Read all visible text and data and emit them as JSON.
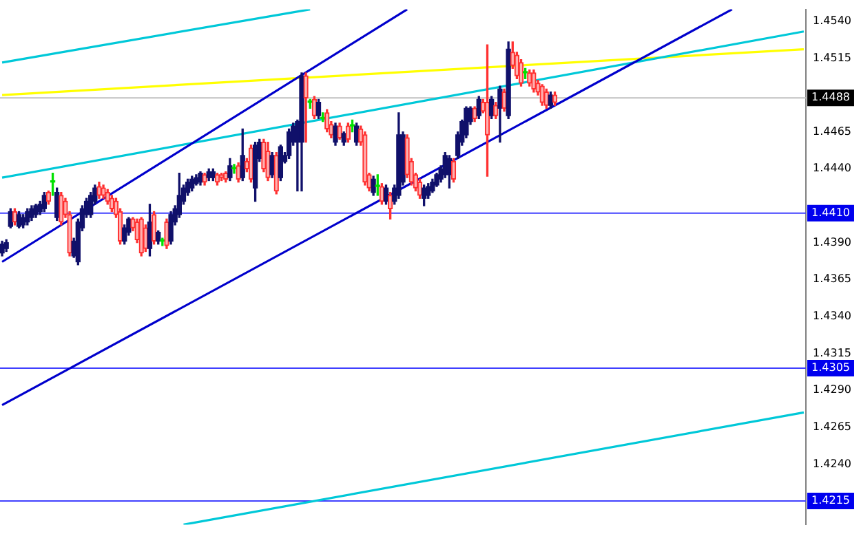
{
  "chart_data": {
    "type": "candlestick",
    "categories": [
      null,
      null,
      null,
      null,
      null,
      null,
      null,
      null,
      null,
      null,
      null,
      null,
      null,
      null,
      null,
      null,
      null,
      null,
      null,
      null,
      null,
      null,
      null,
      null,
      null,
      null,
      null,
      null,
      null,
      null,
      null,
      null,
      null,
      null,
      null,
      null,
      null,
      null,
      null,
      null,
      null,
      null,
      null,
      null,
      null,
      null,
      null,
      null,
      null,
      null,
      null,
      null,
      null,
      null,
      null,
      null,
      null,
      null,
      null,
      null,
      null,
      null,
      null,
      null,
      null,
      null,
      null,
      null,
      null,
      null,
      null,
      null,
      null,
      null,
      null,
      null,
      null,
      null,
      null,
      null,
      null,
      null,
      null,
      null,
      null,
      null,
      null,
      null,
      null,
      null,
      null,
      null,
      null,
      null,
      null,
      null,
      null,
      null,
      null,
      null,
      null,
      null,
      null,
      null,
      null,
      null,
      null,
      null,
      null,
      null,
      null,
      null,
      null,
      null,
      null,
      null,
      null,
      null,
      null,
      null,
      null,
      null,
      null,
      null,
      null,
      null,
      null,
      null,
      null,
      null,
      null,
      null,
      null,
      null,
      null,
      null,
      null,
      null,
      null,
      null,
      null,
      null,
      null,
      null,
      null,
      null,
      null,
      null,
      null,
      null,
      null,
      null,
      null,
      null,
      null,
      null,
      null,
      null,
      null,
      null,
      null,
      null,
      null,
      null,
      null,
      null,
      null,
      null,
      null,
      null,
      null,
      null,
      null,
      null,
      null,
      null,
      null,
      null,
      null,
      null,
      null,
      null,
      null,
      null,
      null,
      null,
      null,
      null,
      null,
      null,
      null
    ],
    "ohlc": [
      [
        1.4383,
        1.4391,
        1.4381,
        1.4389
      ],
      [
        1.4386,
        1.4392,
        1.4384,
        1.439
      ],
      [
        1.4401,
        1.4413,
        1.44,
        1.4411
      ],
      [
        1.4411,
        1.4413,
        1.4402,
        1.4404
      ],
      [
        1.4401,
        1.4411,
        1.44,
        1.4409
      ],
      [
        1.4402,
        1.4409,
        1.44,
        1.4407
      ],
      [
        1.4404,
        1.4413,
        1.4402,
        1.4411
      ],
      [
        1.4407,
        1.4415,
        1.4405,
        1.4413
      ],
      [
        1.4409,
        1.4416,
        1.4407,
        1.4415
      ],
      [
        1.4411,
        1.4418,
        1.4409,
        1.4416
      ],
      [
        1.4413,
        1.4424,
        1.4411,
        1.4422
      ],
      [
        1.4424,
        1.4425,
        1.4416,
        1.4418
      ],
      [
        1.4431,
        1.4437,
        1.4422,
        1.4431
      ],
      [
        1.4407,
        1.4427,
        1.4405,
        1.4424
      ],
      [
        1.4422,
        1.4424,
        1.4402,
        1.4404
      ],
      [
        1.4418,
        1.442,
        1.4407,
        1.4409
      ],
      [
        1.4409,
        1.4411,
        1.4381,
        1.4383
      ],
      [
        1.4381,
        1.4393,
        1.438,
        1.4391
      ],
      [
        1.4377,
        1.4406,
        1.4375,
        1.4404
      ],
      [
        1.44,
        1.4415,
        1.4398,
        1.4413
      ],
      [
        1.4409,
        1.442,
        1.4407,
        1.4418
      ],
      [
        1.4409,
        1.4424,
        1.4407,
        1.4422
      ],
      [
        1.4418,
        1.4429,
        1.4416,
        1.4427
      ],
      [
        1.4428,
        1.4431,
        1.442,
        1.4422
      ],
      [
        1.4427,
        1.4429,
        1.442,
        1.4422
      ],
      [
        1.4424,
        1.4426,
        1.4416,
        1.4418
      ],
      [
        1.442,
        1.4422,
        1.4411,
        1.4413
      ],
      [
        1.4418,
        1.442,
        1.4407,
        1.4409
      ],
      [
        1.4411,
        1.4413,
        1.4389,
        1.4391
      ],
      [
        1.4391,
        1.4402,
        1.4389,
        1.44
      ],
      [
        1.4397,
        1.4407,
        1.4395,
        1.4406
      ],
      [
        1.4406,
        1.4407,
        1.4398,
        1.44
      ],
      [
        1.4404,
        1.4406,
        1.439,
        1.4392
      ],
      [
        1.4406,
        1.4407,
        1.4381,
        1.4383
      ],
      [
        1.44,
        1.4402,
        1.4384,
        1.4386
      ],
      [
        1.4386,
        1.4416,
        1.4381,
        1.4404
      ],
      [
        1.4409,
        1.4411,
        1.4389,
        1.4391
      ],
      [
        1.4391,
        1.4398,
        1.4389,
        1.4397
      ],
      [
        1.4391,
        1.4393,
        1.4388,
        1.4391
      ],
      [
        1.4404,
        1.4406,
        1.4386,
        1.4388
      ],
      [
        1.4391,
        1.4411,
        1.4389,
        1.4409
      ],
      [
        1.4404,
        1.4415,
        1.4402,
        1.4413
      ],
      [
        1.4409,
        1.4437,
        1.4407,
        1.4422
      ],
      [
        1.4418,
        1.4429,
        1.4416,
        1.4427
      ],
      [
        1.4424,
        1.4433,
        1.4422,
        1.4431
      ],
      [
        1.4427,
        1.4435,
        1.4425,
        1.4433
      ],
      [
        1.443,
        1.4436,
        1.4429,
        1.4434
      ],
      [
        1.4431,
        1.4438,
        1.4429,
        1.4437
      ],
      [
        1.4436,
        1.4437,
        1.4429,
        1.4431
      ],
      [
        1.4434,
        1.444,
        1.4432,
        1.4438
      ],
      [
        1.4434,
        1.444,
        1.4432,
        1.4438
      ],
      [
        1.4436,
        1.4437,
        1.4429,
        1.4431
      ],
      [
        1.4436,
        1.4437,
        1.4432,
        1.4434
      ],
      [
        1.4437,
        1.4438,
        1.4431,
        1.4433
      ],
      [
        1.4434,
        1.4447,
        1.4432,
        1.4442
      ],
      [
        1.444,
        1.4443,
        1.4437,
        1.444
      ],
      [
        1.4442,
        1.4444,
        1.4431,
        1.4433
      ],
      [
        1.4434,
        1.4467,
        1.4432,
        1.4449
      ],
      [
        1.4445,
        1.4447,
        1.4438,
        1.444
      ],
      [
        1.4454,
        1.4456,
        1.4431,
        1.4433
      ],
      [
        1.4427,
        1.4458,
        1.4418,
        1.4456
      ],
      [
        1.4447,
        1.446,
        1.4445,
        1.4458
      ],
      [
        1.4458,
        1.446,
        1.4438,
        1.444
      ],
      [
        1.4452,
        1.4458,
        1.4432,
        1.4434
      ],
      [
        1.4436,
        1.4451,
        1.4434,
        1.4449
      ],
      [
        1.4449,
        1.4451,
        1.4423,
        1.4425
      ],
      [
        1.4434,
        1.4456,
        1.4432,
        1.4455
      ],
      [
        1.4445,
        1.4451,
        1.4444,
        1.4449
      ],
      [
        1.4449,
        1.4467,
        1.4447,
        1.4465
      ],
      [
        1.4458,
        1.4471,
        1.4456,
        1.4469
      ],
      [
        1.4458,
        1.4473,
        1.4425,
        1.4472
      ],
      [
        1.4458,
        1.4505,
        1.4425,
        1.4503
      ],
      [
        1.4503,
        1.4505,
        1.4458,
        1.4488
      ],
      [
        1.4485,
        1.4487,
        1.4481,
        1.4485
      ],
      [
        1.4487,
        1.4489,
        1.4474,
        1.4476
      ],
      [
        1.4476,
        1.4487,
        1.4474,
        1.4485
      ],
      [
        1.4474,
        1.4478,
        1.4472,
        1.4474
      ],
      [
        1.4478,
        1.448,
        1.4465,
        1.4467
      ],
      [
        1.447,
        1.4472,
        1.4461,
        1.4463
      ],
      [
        1.4458,
        1.4471,
        1.4456,
        1.4469
      ],
      [
        1.4469,
        1.4471,
        1.446,
        1.4461
      ],
      [
        1.4458,
        1.4465,
        1.4456,
        1.4464
      ],
      [
        1.4469,
        1.4471,
        1.4458,
        1.446
      ],
      [
        1.4469,
        1.4473,
        1.4465,
        1.4469
      ],
      [
        1.4458,
        1.4471,
        1.4456,
        1.4469
      ],
      [
        1.4467,
        1.4469,
        1.4456,
        1.4458
      ],
      [
        1.4463,
        1.4465,
        1.4429,
        1.4431
      ],
      [
        1.4436,
        1.4437,
        1.4425,
        1.4427
      ],
      [
        1.4424,
        1.4435,
        1.4422,
        1.4433
      ],
      [
        1.4428,
        1.4436,
        1.4422,
        1.4428
      ],
      [
        1.4428,
        1.443,
        1.4416,
        1.4418
      ],
      [
        1.4418,
        1.4429,
        1.4416,
        1.4427
      ],
      [
        1.4422,
        1.4424,
        1.4406,
        1.4413
      ],
      [
        1.4418,
        1.4429,
        1.4416,
        1.4427
      ],
      [
        1.4422,
        1.4478,
        1.442,
        1.4463
      ],
      [
        1.4431,
        1.4465,
        1.4429,
        1.4463
      ],
      [
        1.4461,
        1.4463,
        1.4434,
        1.4436
      ],
      [
        1.4445,
        1.4447,
        1.4429,
        1.4431
      ],
      [
        1.4436,
        1.4437,
        1.4425,
        1.4427
      ],
      [
        1.4431,
        1.4433,
        1.442,
        1.4422
      ],
      [
        1.442,
        1.4429,
        1.4415,
        1.4427
      ],
      [
        1.4422,
        1.443,
        1.442,
        1.4428
      ],
      [
        1.4425,
        1.4433,
        1.4424,
        1.4431
      ],
      [
        1.4429,
        1.4437,
        1.4428,
        1.4436
      ],
      [
        1.4433,
        1.4442,
        1.4431,
        1.444
      ],
      [
        1.4436,
        1.4451,
        1.4434,
        1.4449
      ],
      [
        1.4436,
        1.4449,
        1.4427,
        1.4447
      ],
      [
        1.4445,
        1.4447,
        1.4431,
        1.4433
      ],
      [
        1.4449,
        1.4465,
        1.4447,
        1.4463
      ],
      [
        1.4458,
        1.4473,
        1.4456,
        1.4472
      ],
      [
        1.4463,
        1.4482,
        1.4461,
        1.4481
      ],
      [
        1.4472,
        1.4482,
        1.447,
        1.4481
      ],
      [
        1.4481,
        1.4482,
        1.4472,
        1.4474
      ],
      [
        1.4476,
        1.4489,
        1.4474,
        1.4487
      ],
      [
        1.4485,
        1.4487,
        1.4478,
        1.4479
      ],
      [
        1.4485,
        1.4524,
        1.4435,
        1.4463
      ],
      [
        1.4476,
        1.4489,
        1.4474,
        1.4487
      ],
      [
        1.4483,
        1.4485,
        1.4474,
        1.4476
      ],
      [
        1.4481,
        1.4496,
        1.4458,
        1.4494
      ],
      [
        1.4492,
        1.4494,
        1.4479,
        1.4481
      ],
      [
        1.4476,
        1.4526,
        1.4474,
        1.4521
      ],
      [
        1.4519,
        1.4526,
        1.4508,
        1.451
      ],
      [
        1.4517,
        1.4519,
        1.4501,
        1.4503
      ],
      [
        1.4512,
        1.4514,
        1.4496,
        1.4498
      ],
      [
        1.4505,
        1.4508,
        1.4501,
        1.4505
      ],
      [
        1.4505,
        1.4507,
        1.4496,
        1.4498
      ],
      [
        1.4505,
        1.4507,
        1.4492,
        1.4494
      ],
      [
        1.4498,
        1.45,
        1.449,
        1.4492
      ],
      [
        1.4496,
        1.4497,
        1.4483,
        1.4485
      ],
      [
        1.4492,
        1.4494,
        1.4481,
        1.4483
      ],
      [
        1.4483,
        1.4492,
        1.4481,
        1.449
      ],
      [
        1.449,
        1.4492,
        1.4483,
        1.4485
      ],
      null,
      null,
      null,
      null,
      null,
      null,
      null,
      null,
      null,
      null,
      null,
      null,
      null,
      null,
      null,
      null,
      null,
      null,
      null,
      null,
      null,
      null,
      null,
      null,
      null,
      null,
      null,
      null,
      null,
      null,
      null,
      null,
      null,
      null,
      null,
      null,
      null,
      null,
      null,
      null,
      null,
      null,
      null,
      null,
      null,
      null,
      null,
      null,
      null,
      null,
      null,
      null,
      null,
      null,
      null,
      null,
      null,
      null,
      null
    ],
    "series": [
      {
        "type": "line",
        "color": "#0000cc",
        "values": [
          1.4377,
          null,
          null,
          null,
          null,
          null,
          null,
          null,
          null,
          null,
          null,
          null,
          null,
          null,
          null,
          null,
          null,
          null,
          null,
          null,
          null,
          null,
          null,
          null,
          null,
          null,
          null,
          null,
          null,
          null,
          null,
          null,
          null,
          null,
          null,
          null,
          null,
          null,
          null,
          null,
          null,
          null,
          null,
          null,
          null,
          null,
          null,
          null,
          null,
          null,
          null,
          null,
          null,
          null,
          null,
          null,
          null,
          null,
          null,
          null,
          null,
          null,
          null,
          null,
          null,
          null,
          null,
          null,
          null,
          null,
          null,
          null,
          null,
          null,
          null,
          null,
          null,
          null,
          null,
          null,
          null,
          null,
          null,
          null,
          null,
          null,
          null,
          null,
          null,
          null,
          null,
          null,
          null,
          null,
          null,
          null,
          1.4548,
          null,
          null,
          null,
          null,
          null,
          null,
          null,
          null,
          null,
          null,
          null,
          null,
          null,
          null,
          null,
          null,
          null,
          null,
          null,
          null,
          null,
          null,
          null,
          null,
          null,
          null,
          null,
          null,
          null,
          null,
          null,
          null,
          null,
          null,
          null,
          null,
          null,
          null,
          null,
          null,
          null,
          null,
          null,
          null,
          null,
          null,
          null,
          null,
          null,
          null,
          null,
          null,
          null,
          null,
          null,
          null,
          null,
          null,
          null,
          null,
          null,
          null,
          null,
          null,
          null,
          null,
          null,
          null,
          null,
          null,
          null,
          null,
          null,
          null,
          null,
          null,
          null,
          null,
          null,
          null,
          null,
          null,
          null,
          null,
          null,
          null,
          null,
          null,
          null,
          null,
          null,
          null,
          null,
          null
        ]
      },
      {
        "type": "line",
        "color": "#0000cc",
        "values": [
          1.428,
          null,
          null,
          null,
          null,
          null,
          null,
          null,
          null,
          null,
          null,
          null,
          null,
          null,
          null,
          null,
          null,
          null,
          null,
          null,
          null,
          null,
          null,
          null,
          null,
          null,
          null,
          null,
          null,
          null,
          null,
          null,
          null,
          null,
          null,
          null,
          null,
          null,
          null,
          null,
          null,
          null,
          null,
          null,
          null,
          null,
          null,
          null,
          null,
          null,
          null,
          null,
          null,
          null,
          null,
          null,
          null,
          null,
          null,
          null,
          null,
          null,
          null,
          null,
          null,
          null,
          null,
          null,
          null,
          null,
          null,
          null,
          null,
          null,
          null,
          null,
          null,
          null,
          null,
          null,
          null,
          null,
          null,
          null,
          null,
          null,
          null,
          null,
          null,
          null,
          null,
          null,
          null,
          null,
          null,
          null,
          null,
          null,
          null,
          null,
          null,
          null,
          null,
          null,
          null,
          null,
          null,
          null,
          null,
          null,
          null,
          null,
          null,
          null,
          null,
          null,
          null,
          null,
          null,
          null,
          null,
          null,
          null,
          null,
          null,
          null,
          null,
          null,
          null,
          null,
          null,
          null,
          null,
          null,
          null,
          null,
          null,
          null,
          null,
          null,
          null,
          null,
          null,
          null,
          null,
          null,
          null,
          null,
          null,
          null,
          null,
          null,
          null,
          null,
          null,
          null,
          null,
          null,
          null,
          null,
          null,
          null,
          null,
          null,
          null,
          null,
          null,
          null,
          null,
          null,
          null,
          null,
          null,
          1.4548,
          null,
          null,
          null,
          null,
          null,
          null,
          null,
          null,
          null,
          null,
          null,
          null,
          null,
          null,
          null,
          null,
          null
        ]
      },
      {
        "type": "line",
        "color": "#00c8d8",
        "values": [
          1.4512,
          null,
          null,
          null,
          null,
          null,
          null,
          null,
          null,
          null,
          null,
          null,
          null,
          null,
          null,
          null,
          null,
          null,
          null,
          null,
          null,
          null,
          null,
          null,
          null,
          null,
          null,
          null,
          null,
          null,
          null,
          null,
          null,
          null,
          null,
          null,
          null,
          null,
          null,
          null,
          null,
          null,
          null,
          null,
          null,
          null,
          null,
          null,
          null,
          null,
          null,
          null,
          null,
          null,
          null,
          null,
          null,
          null,
          null,
          null,
          null,
          null,
          null,
          null,
          null,
          null,
          null,
          null,
          null,
          null,
          null,
          null,
          null,
          1.4548,
          null,
          null,
          null,
          null,
          null,
          null,
          null,
          null,
          null,
          null,
          null,
          null,
          null,
          null,
          null,
          null,
          null,
          null,
          null,
          null,
          null,
          null,
          null,
          null,
          null,
          null,
          null,
          null,
          null,
          null,
          null,
          null,
          null,
          null,
          null,
          null,
          null,
          null,
          null,
          null,
          null,
          null,
          null,
          null,
          null,
          null,
          null,
          null,
          null,
          null,
          null,
          null,
          null,
          null,
          null,
          null,
          null,
          null,
          null,
          null,
          null,
          null,
          null,
          null,
          null,
          null,
          null,
          null,
          null,
          null,
          null,
          null,
          null,
          null,
          null,
          null,
          null,
          null,
          null,
          null,
          null,
          null,
          null,
          null,
          null,
          null,
          null,
          null,
          null,
          null,
          null,
          null,
          null,
          null,
          null,
          null,
          null,
          null,
          null,
          null,
          null,
          null,
          null,
          null,
          null,
          null,
          null,
          null,
          null,
          null,
          null,
          null,
          null,
          null,
          null,
          null,
          null
        ]
      },
      {
        "type": "line",
        "color": "#00c8d8",
        "values": [
          1.4434,
          null,
          null,
          null,
          null,
          null,
          null,
          null,
          null,
          null,
          null,
          null,
          null,
          null,
          null,
          null,
          null,
          null,
          null,
          null,
          null,
          null,
          null,
          null,
          null,
          null,
          null,
          null,
          null,
          null,
          null,
          null,
          null,
          null,
          null,
          null,
          null,
          null,
          null,
          null,
          null,
          null,
          null,
          null,
          null,
          null,
          null,
          null,
          null,
          null,
          null,
          null,
          null,
          null,
          null,
          null,
          null,
          null,
          null,
          null,
          null,
          null,
          null,
          null,
          null,
          null,
          null,
          null,
          null,
          null,
          null,
          null,
          null,
          null,
          null,
          null,
          null,
          null,
          null,
          null,
          null,
          null,
          null,
          null,
          null,
          null,
          null,
          null,
          null,
          null,
          null,
          null,
          null,
          null,
          null,
          null,
          null,
          null,
          null,
          null,
          null,
          null,
          null,
          null,
          null,
          null,
          null,
          null,
          null,
          null,
          null,
          null,
          null,
          null,
          null,
          null,
          null,
          null,
          null,
          null,
          null,
          null,
          null,
          null,
          null,
          null,
          null,
          null,
          null,
          null,
          null,
          null,
          null,
          null,
          null,
          null,
          null,
          null,
          null,
          null,
          null,
          null,
          null,
          null,
          null,
          null,
          null,
          null,
          null,
          null,
          null,
          null,
          null,
          null,
          null,
          null,
          null,
          null,
          null,
          null,
          null,
          null,
          null,
          null,
          null,
          null,
          null,
          null,
          null,
          null,
          null,
          null,
          null,
          null,
          null,
          null,
          null,
          null,
          null,
          null,
          null,
          null,
          null,
          null,
          null,
          null,
          null,
          null,
          null,
          null,
          1.4533
        ]
      },
      {
        "type": "line",
        "color": "#00c8d8",
        "values": [
          null,
          null,
          null,
          null,
          null,
          null,
          null,
          null,
          null,
          null,
          null,
          null,
          null,
          null,
          null,
          null,
          null,
          null,
          null,
          null,
          null,
          null,
          null,
          null,
          null,
          null,
          null,
          null,
          null,
          null,
          null,
          null,
          null,
          null,
          null,
          null,
          null,
          null,
          null,
          null,
          null,
          null,
          null,
          1.4199,
          null,
          null,
          null,
          null,
          null,
          null,
          null,
          null,
          null,
          null,
          null,
          null,
          null,
          null,
          null,
          null,
          null,
          null,
          null,
          null,
          null,
          null,
          null,
          null,
          null,
          null,
          null,
          null,
          null,
          null,
          null,
          null,
          null,
          null,
          null,
          null,
          null,
          null,
          null,
          null,
          null,
          null,
          null,
          null,
          null,
          null,
          null,
          null,
          null,
          null,
          null,
          null,
          null,
          null,
          null,
          null,
          null,
          null,
          null,
          null,
          null,
          null,
          null,
          null,
          null,
          null,
          null,
          null,
          null,
          null,
          null,
          null,
          null,
          null,
          null,
          null,
          null,
          null,
          null,
          null,
          null,
          null,
          null,
          null,
          null,
          null,
          null,
          null,
          null,
          null,
          null,
          null,
          null,
          null,
          null,
          null,
          null,
          null,
          null,
          null,
          null,
          null,
          null,
          null,
          null,
          null,
          null,
          null,
          null,
          null,
          null,
          null,
          null,
          null,
          null,
          null,
          null,
          null,
          null,
          null,
          null,
          null,
          null,
          null,
          null,
          null,
          null,
          null,
          null,
          null,
          null,
          null,
          null,
          null,
          null,
          null,
          null,
          null,
          null,
          null,
          null,
          null,
          null,
          null,
          null,
          null,
          1.4275
        ]
      },
      {
        "type": "line",
        "color": "#ffff00",
        "values": [
          1.449,
          null,
          null,
          null,
          null,
          null,
          null,
          null,
          null,
          null,
          null,
          null,
          null,
          null,
          null,
          null,
          null,
          null,
          null,
          null,
          null,
          null,
          null,
          null,
          null,
          null,
          null,
          null,
          null,
          null,
          null,
          null,
          null,
          null,
          null,
          null,
          null,
          null,
          null,
          null,
          null,
          null,
          null,
          null,
          null,
          null,
          null,
          null,
          null,
          null,
          null,
          null,
          null,
          null,
          null,
          null,
          null,
          null,
          null,
          null,
          null,
          null,
          null,
          null,
          null,
          null,
          null,
          null,
          null,
          null,
          null,
          null,
          null,
          null,
          null,
          null,
          null,
          null,
          null,
          null,
          null,
          null,
          null,
          null,
          null,
          null,
          null,
          null,
          null,
          null,
          null,
          null,
          null,
          null,
          null,
          null,
          null,
          null,
          null,
          null,
          null,
          null,
          null,
          null,
          null,
          null,
          null,
          null,
          null,
          null,
          null,
          null,
          null,
          null,
          null,
          null,
          null,
          null,
          null,
          null,
          null,
          null,
          null,
          null,
          null,
          null,
          null,
          null,
          null,
          null,
          null,
          null,
          null,
          null,
          null,
          null,
          null,
          null,
          null,
          null,
          null,
          null,
          null,
          null,
          null,
          null,
          null,
          null,
          null,
          null,
          null,
          null,
          null,
          null,
          null,
          null,
          null,
          null,
          null,
          null,
          null,
          null,
          null,
          null,
          null,
          null,
          null,
          null,
          null,
          null,
          null,
          null,
          null,
          null,
          null,
          null,
          null,
          null,
          null,
          null,
          null,
          null,
          null,
          null,
          null,
          null,
          null,
          null,
          null,
          null,
          1.4521
        ]
      }
    ],
    "ref_lines": [
      {
        "axis": "y",
        "value": 1.4488,
        "label": "1.4488",
        "color": "#c0c0c0"
      },
      {
        "axis": "y",
        "value": 1.441,
        "label": "1.4410",
        "color": "#4040ff"
      },
      {
        "axis": "y",
        "value": 1.4305,
        "label": "1.4305",
        "color": "#4040ff"
      },
      {
        "axis": "y",
        "value": 1.4215,
        "label": "1.4215",
        "color": "#4040ff"
      }
    ],
    "ylim": [
      1.4199,
      1.4548
    ],
    "yticks": [
      {
        "value": 1.454,
        "label": "1.4540"
      },
      {
        "value": 1.4515,
        "label": "1.4515"
      },
      {
        "value": 1.4465,
        "label": "1.4465"
      },
      {
        "value": 1.444,
        "label": "1.4440"
      },
      {
        "value": 1.439,
        "label": "1.4390"
      },
      {
        "value": 1.4365,
        "label": "1.4365"
      },
      {
        "value": 1.434,
        "label": "1.4340"
      },
      {
        "value": 1.4315,
        "label": "1.4315"
      },
      {
        "value": 1.429,
        "label": "1.4290"
      },
      {
        "value": 1.4265,
        "label": "1.4265"
      },
      {
        "value": 1.424,
        "label": "1.4240"
      }
    ],
    "tick_labels": "y"
  }
}
